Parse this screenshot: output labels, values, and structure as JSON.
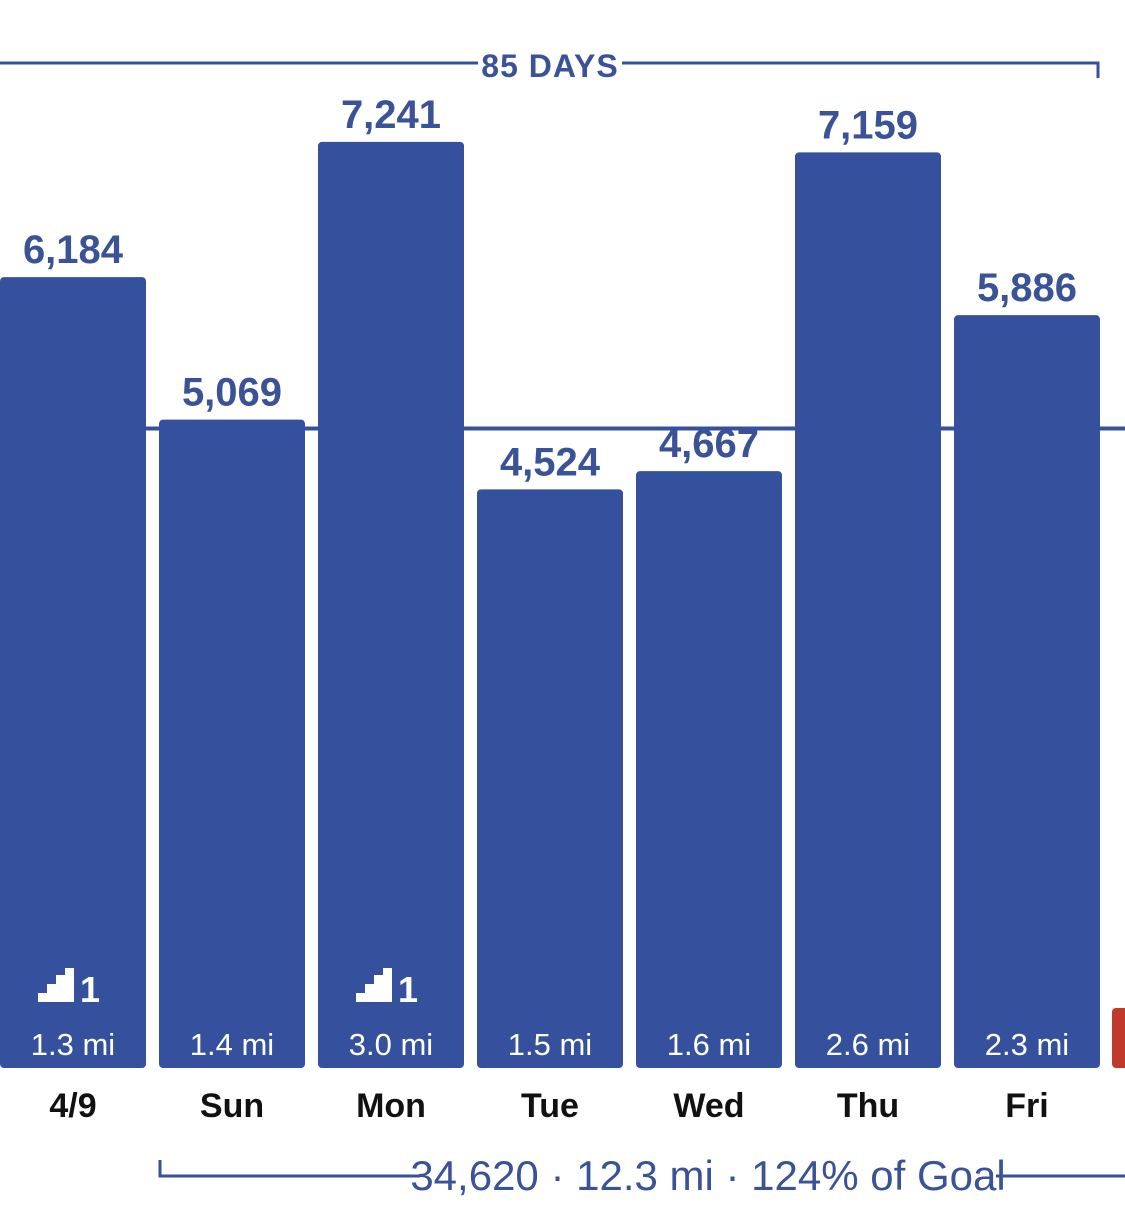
{
  "chart_data": {
    "type": "bar",
    "top_label": "85 DAYS",
    "categories": [
      "4/9",
      "Sun",
      "Mon",
      "Tue",
      "Wed",
      "Thu",
      "Fri"
    ],
    "values": [
      6184,
      5069,
      7241,
      4524,
      4667,
      7159,
      5886
    ],
    "value_labels": [
      "6,184",
      "5,069",
      "7,241",
      "4,524",
      "4,667",
      "7,159",
      "5,886"
    ],
    "distances": [
      "1.3 mi",
      "1.4 mi",
      "3.0 mi",
      "1.5 mi",
      "1.6 mi",
      "2.6 mi",
      "2.3 mi"
    ],
    "stairs": [
      1,
      null,
      1,
      null,
      null,
      null,
      null
    ],
    "goal": 5000,
    "summary": "34,620 · 12.3 mi · 124% of Goal",
    "colors": {
      "bar": "#35519e",
      "text": "#3a5297",
      "day": "#111111",
      "partial_bar": "#c0392b"
    }
  }
}
